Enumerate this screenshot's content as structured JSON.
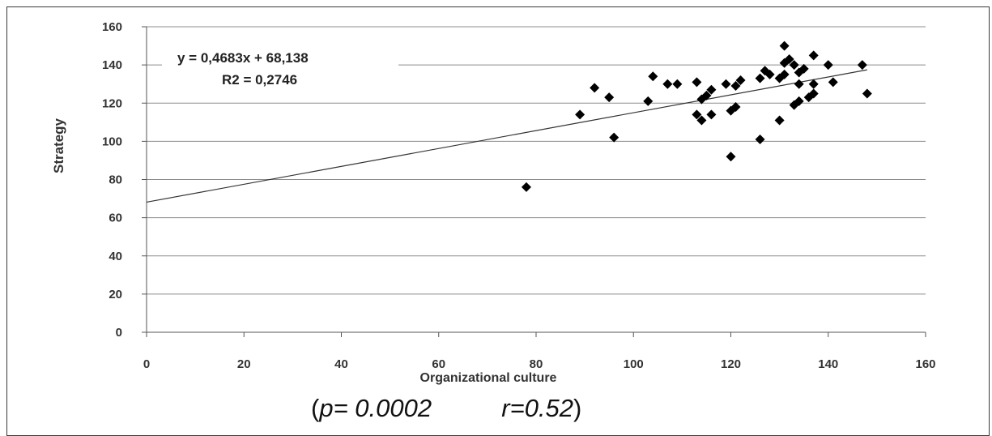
{
  "chart_data": {
    "type": "scatter",
    "xlabel": "Organizational culture",
    "ylabel": "Strategy",
    "xlim": [
      0,
      160
    ],
    "ylim": [
      0,
      160
    ],
    "xticks": [
      "0",
      "20",
      "40",
      "60",
      "80",
      "100",
      "120",
      "140",
      "160"
    ],
    "yticks": [
      "0",
      "20",
      "40",
      "60",
      "80",
      "100",
      "120",
      "140",
      "160"
    ],
    "grid": "horizontal",
    "marker": "diamond",
    "marker_color": "#000000",
    "trendline": {
      "slope": 0.4683,
      "intercept": 68.138,
      "equation_text": "y = 0,4683x + 68,138",
      "r2_text": "R2 = 0,2746"
    },
    "points": [
      [
        78,
        76
      ],
      [
        89,
        114
      ],
      [
        92,
        128
      ],
      [
        95,
        123
      ],
      [
        96,
        102
      ],
      [
        103,
        121
      ],
      [
        104,
        134
      ],
      [
        107,
        130
      ],
      [
        109,
        130
      ],
      [
        113,
        131
      ],
      [
        113,
        114
      ],
      [
        114,
        122
      ],
      [
        114,
        111
      ],
      [
        115,
        124
      ],
      [
        116,
        127
      ],
      [
        116,
        114
      ],
      [
        119,
        130
      ],
      [
        120,
        116
      ],
      [
        120,
        92
      ],
      [
        121,
        129
      ],
      [
        121,
        118
      ],
      [
        122,
        132
      ],
      [
        126,
        101
      ],
      [
        126,
        133
      ],
      [
        127,
        137
      ],
      [
        128,
        135
      ],
      [
        130,
        133
      ],
      [
        130,
        111
      ],
      [
        131,
        135
      ],
      [
        131,
        150
      ],
      [
        131,
        141
      ],
      [
        132,
        143
      ],
      [
        133,
        119
      ],
      [
        133,
        140
      ],
      [
        134,
        121
      ],
      [
        134,
        136
      ],
      [
        134,
        130
      ],
      [
        135,
        138
      ],
      [
        136,
        123
      ],
      [
        137,
        145
      ],
      [
        137,
        130
      ],
      [
        137,
        125
      ],
      [
        140,
        140
      ],
      [
        141,
        131
      ],
      [
        147,
        140
      ],
      [
        148,
        125
      ]
    ]
  },
  "stats": {
    "open": "(",
    "p_var": "p",
    "p_rest": "= 0.0002",
    "gap": "          ",
    "r_text": "r=0.52",
    "close": ")"
  }
}
